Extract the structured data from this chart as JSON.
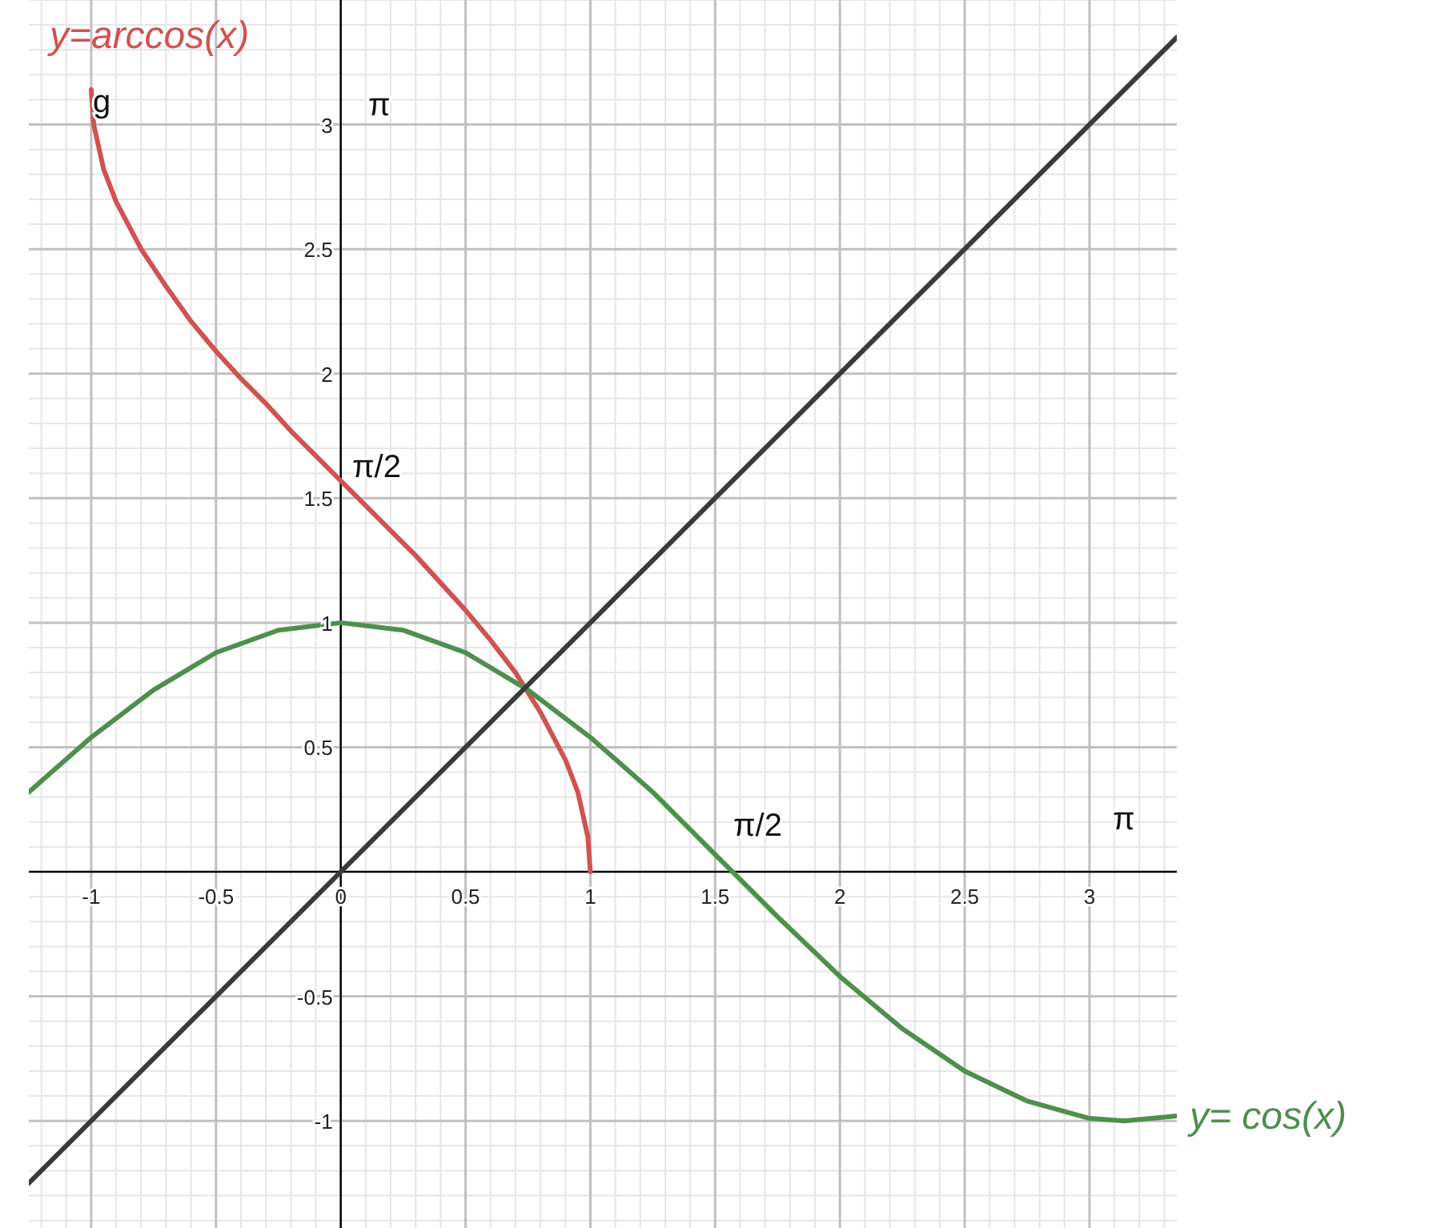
{
  "chart_data": {
    "type": "line",
    "xlim": [
      -1.25,
      3.35
    ],
    "ylim": [
      -1.43,
      3.5
    ],
    "xticks": [
      -1,
      -0.5,
      0,
      0.5,
      1,
      1.5,
      2,
      2.5,
      3
    ],
    "yticks": [
      -1,
      -0.5,
      0.5,
      1,
      1.5,
      2,
      2.5,
      3
    ],
    "grid": true,
    "line_style": "solid",
    "series": [
      {
        "name": "y=arccos(x)",
        "color": "#d05252",
        "x": [
          -1,
          -0.99,
          -0.95,
          -0.9,
          -0.8,
          -0.7,
          -0.6,
          -0.5,
          -0.4,
          -0.3,
          -0.2,
          -0.1,
          0,
          0.1,
          0.2,
          0.3,
          0.4,
          0.5,
          0.6,
          0.7,
          0.8,
          0.9,
          0.95,
          0.99,
          1
        ],
        "values": [
          3.14,
          3.0,
          2.82,
          2.69,
          2.5,
          2.35,
          2.21,
          2.09,
          1.98,
          1.88,
          1.77,
          1.67,
          1.57,
          1.47,
          1.37,
          1.27,
          1.16,
          1.05,
          0.93,
          0.8,
          0.64,
          0.45,
          0.32,
          0.14,
          0
        ]
      },
      {
        "name": "y= cos(x)",
        "color": "#4e8f4e",
        "x": [
          -1.25,
          -1,
          -0.75,
          -0.5,
          -0.25,
          0,
          0.25,
          0.5,
          0.75,
          1,
          1.25,
          1.5,
          1.75,
          2,
          2.25,
          2.5,
          2.75,
          3,
          3.14,
          3.35
        ],
        "values": [
          0.32,
          0.54,
          0.73,
          0.88,
          0.97,
          1,
          0.97,
          0.88,
          0.73,
          0.54,
          0.32,
          0.07,
          -0.18,
          -0.42,
          -0.63,
          -0.8,
          -0.92,
          -0.99,
          -1,
          -0.98
        ]
      },
      {
        "color": "#3a3a3a",
        "x": [
          -1.25,
          3.35
        ],
        "values": [
          -1.25,
          3.35
        ]
      }
    ],
    "annotations": [
      "g",
      "π",
      "π/2",
      "π/2",
      "π"
    ]
  }
}
